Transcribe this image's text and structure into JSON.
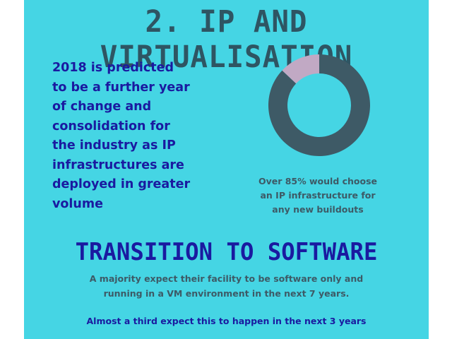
{
  "title": "2. IP AND VIRTUALISATION",
  "intro_lines": [
    "2018 is predicted",
    "to be a further year",
    "of change and",
    "consolidation for",
    "the industry as IP",
    "infrastructures are",
    "deployed in greater",
    "volume"
  ],
  "donut": {
    "ip_share_percent": 87,
    "other_share_percent": 13,
    "colors": {
      "main": "#3e5a66",
      "other": "#c1a9c4"
    }
  },
  "caption_lines": [
    "Over 85%  would choose",
    "an IP infrastructure for",
    "any new buildouts"
  ],
  "section2": {
    "heading": "TRANSITION TO SOFTWARE",
    "line1": "A majority expect their facility to be software only and",
    "line2": "running in a VM environment in the next 7 years.",
    "line3": "Almost a third expect this to happen in the next 3 years"
  },
  "colors": {
    "background": "#45d5e4",
    "title": "#2e5563",
    "accent_text": "#1a1aa0",
    "muted_text": "#3d5a66"
  }
}
